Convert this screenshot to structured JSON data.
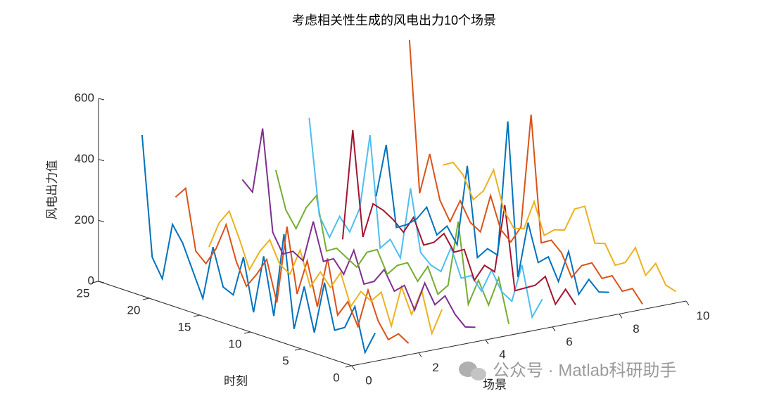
{
  "chart_data": {
    "type": "line3d",
    "title": "考虑相关性生成的风电出力10个场景",
    "xlabel": "场景",
    "ylabel": "时刻",
    "zlabel": "风电出力值",
    "watermark": "公众号 · Matlab科研助手",
    "x": [
      1,
      2,
      3,
      4,
      5,
      6,
      7,
      8,
      9,
      10,
      11,
      12,
      13,
      14,
      15,
      16,
      17,
      18,
      19,
      20,
      21,
      22,
      23,
      24
    ],
    "series": [
      {
        "color": "#0072bd",
        "values": [
          75,
          0,
          140,
          60,
          40,
          185,
          10,
          150,
          0,
          300,
          20,
          205,
          10,
          180,
          45,
          60,
          180,
          0,
          80,
          160,
          210,
          20,
          80,
          470
        ]
      },
      {
        "color": "#d95319",
        "values": [
          20,
          40,
          10,
          60,
          150,
          20,
          90,
          35,
          210,
          40,
          180,
          60,
          270,
          10,
          140,
          80,
          30,
          100,
          210,
          120,
          60,
          90,
          285,
          245
        ]
      },
      {
        "color": "#edb120",
        "values": [
          110,
          20,
          150,
          60,
          140,
          0,
          100,
          60,
          80,
          20,
          120,
          60,
          100,
          40,
          150,
          60,
          80,
          150,
          100,
          30,
          120,
          200,
          150,
          60
        ]
      },
      {
        "color": "#7e2f8e",
        "values": [
          30,
          20,
          50,
          100,
          60,
          120,
          20,
          90,
          60,
          120,
          70,
          50,
          150,
          60,
          100,
          80,
          200,
          60,
          80,
          60,
          120,
          450,
          230,
          260
        ]
      },
      {
        "color": "#77ac30",
        "values": [
          20,
          160,
          60,
          130,
          40,
          300,
          80,
          40,
          120,
          60,
          110,
          90,
          50,
          120,
          100,
          40,
          60,
          80,
          60,
          230,
          180,
          100,
          150,
          270
        ]
      },
      {
        "color": "#4dbeee",
        "values": [
          80,
          10,
          170,
          40,
          60,
          120,
          40,
          80,
          60,
          150,
          60,
          70,
          100,
          300,
          60,
          110,
          70,
          430,
          180,
          90,
          130,
          50,
          110,
          420
        ]
      },
      {
        "color": "#a2142f",
        "values": [
          40,
          80,
          20,
          100,
          60,
          40,
          20,
          290,
          60,
          70,
          10,
          100,
          80,
          130,
          90,
          70,
          150,
          90,
          120,
          140,
          150,
          30,
          370,
          0
        ]
      },
      {
        "color": "#0072bd",
        "values": [
          60,
          50,
          80,
          20,
          150,
          40,
          110,
          80,
          200,
          10,
          510,
          60,
          70,
          30,
          320,
          50,
          100,
          60,
          140,
          90,
          60,
          40,
          300,
          120
        ]
      },
      {
        "color": "#d95319",
        "values": [
          0,
          40,
          20,
          60,
          40,
          80,
          60,
          10,
          80,
          110,
          90,
          500,
          120,
          60,
          90,
          190,
          60,
          80,
          140,
          60,
          120,
          260,
          120,
          612
        ]
      },
      {
        "color": "#edb120",
        "values": [
          20,
          30,
          90,
          40,
          120,
          60,
          40,
          100,
          90,
          200,
          180,
          100,
          90,
          60,
          160,
          60,
          50,
          100,
          220,
          140,
          100,
          170,
          200,
          180
        ]
      }
    ],
    "xlim": [
      0,
      10
    ],
    "xticks": [
      0,
      2,
      4,
      6,
      8,
      10
    ],
    "ylim": [
      0,
      25
    ],
    "yticks": [
      0,
      5,
      10,
      15,
      20,
      25
    ],
    "zlim": [
      0,
      600
    ],
    "zticks": [
      0,
      200,
      400,
      600
    ]
  }
}
